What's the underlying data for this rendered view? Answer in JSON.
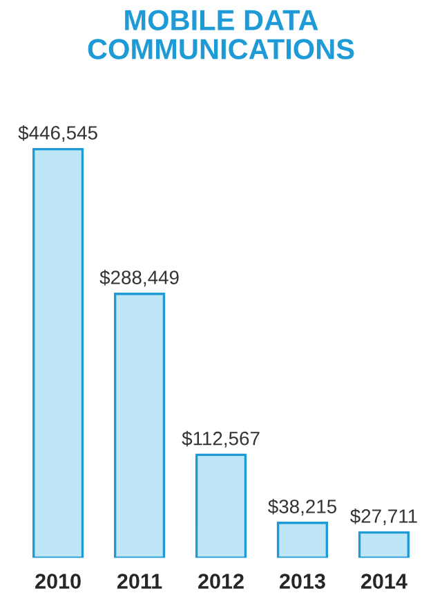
{
  "chart_data": {
    "type": "bar",
    "title": "MOBILE DATA\nCOMMUNICATIONS",
    "categories": [
      "2010",
      "2011",
      "2012",
      "2013",
      "2014"
    ],
    "values": [
      446545,
      288449,
      112567,
      38215,
      27711
    ],
    "value_labels": [
      "$446,545",
      "$288,449",
      "$112,567",
      "$38,215",
      "$27,711"
    ],
    "color": "#1e9ad6",
    "grid": false,
    "legend": false
  }
}
